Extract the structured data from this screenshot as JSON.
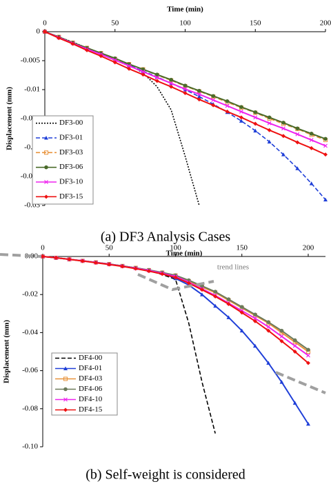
{
  "chart_data": [
    {
      "type": "line",
      "title": "Time (min)",
      "y_label": "Displacement (mm)",
      "caption": "(a) DF3 Analysis Cases",
      "x": [
        0,
        10,
        20,
        30,
        40,
        50,
        60,
        70,
        80,
        90,
        100,
        110,
        120,
        130,
        140,
        150,
        160,
        170,
        180,
        190,
        200
      ],
      "xlim": [
        0,
        200
      ],
      "xticks": [
        0,
        50,
        100,
        150,
        200
      ],
      "ylim": [
        0,
        -0.03
      ],
      "yticks": [
        0,
        -0.005,
        -0.01,
        -0.015,
        -0.02,
        -0.025,
        -0.03
      ],
      "legend": "bottom-left",
      "series": [
        {
          "name": "DF3-00",
          "color": "#000000",
          "dash": "dotted",
          "marker": "none",
          "values": [
            0,
            -0.0009,
            -0.0018,
            -0.0028,
            -0.0037,
            -0.0046,
            -0.0057,
            -0.0071,
            -0.0095,
            -0.0135,
            -0.0215,
            -0.03,
            null,
            null,
            null,
            null,
            null,
            null,
            null,
            null,
            null
          ]
        },
        {
          "name": "DF3-01",
          "color": "#1f3fd8",
          "dash": "dashed",
          "marker": "triangle",
          "values": [
            0,
            -0.0009,
            -0.0019,
            -0.0028,
            -0.0038,
            -0.0048,
            -0.0058,
            -0.0068,
            -0.0078,
            -0.0089,
            -0.01,
            -0.0112,
            -0.0125,
            -0.0139,
            -0.0154,
            -0.0171,
            -0.019,
            -0.0212,
            -0.0236,
            -0.0262,
            -0.029
          ]
        },
        {
          "name": "DF3-03",
          "color": "#e8923a",
          "dash": "dashed",
          "marker": "square",
          "values": [
            0,
            -0.0009,
            -0.0019,
            -0.0028,
            -0.0037,
            -0.0047,
            -0.0056,
            -0.0065,
            -0.0075,
            -0.0084,
            -0.0094,
            -0.0103,
            -0.0112,
            -0.0122,
            -0.0131,
            -0.014,
            -0.015,
            -0.0159,
            -0.0168,
            -0.0178,
            -0.0187
          ]
        },
        {
          "name": "DF3-06",
          "color": "#4a6b2a",
          "dash": "solid",
          "marker": "circle",
          "values": [
            0,
            -0.0009,
            -0.0019,
            -0.0028,
            -0.0037,
            -0.0046,
            -0.0056,
            -0.0065,
            -0.0074,
            -0.0083,
            -0.0093,
            -0.0102,
            -0.0111,
            -0.012,
            -0.013,
            -0.0139,
            -0.0148,
            -0.0157,
            -0.0167,
            -0.0176,
            -0.0185
          ]
        },
        {
          "name": "DF3-10",
          "color": "#ee22ee",
          "dash": "solid",
          "marker": "cross",
          "values": [
            0,
            -0.001,
            -0.002,
            -0.003,
            -0.0039,
            -0.0049,
            -0.0059,
            -0.0069,
            -0.0079,
            -0.0089,
            -0.0099,
            -0.0108,
            -0.0118,
            -0.0128,
            -0.0138,
            -0.0148,
            -0.0158,
            -0.0167,
            -0.0177,
            -0.0187,
            -0.0197
          ]
        },
        {
          "name": "DF3-15",
          "color": "#ee1111",
          "dash": "solid",
          "marker": "diamond",
          "values": [
            0,
            -0.0011,
            -0.0021,
            -0.0032,
            -0.0042,
            -0.0053,
            -0.0064,
            -0.0074,
            -0.0085,
            -0.0095,
            -0.0106,
            -0.0117,
            -0.0127,
            -0.0138,
            -0.0148,
            -0.0159,
            -0.017,
            -0.018,
            -0.0191,
            -0.0201,
            -0.0212
          ]
        }
      ]
    },
    {
      "type": "line",
      "title": "Time (min)",
      "y_label": "Displacement (mm)",
      "caption": "(b) Self-weight is considered",
      "annotation": "trend lines",
      "x": [
        0,
        10,
        20,
        30,
        40,
        50,
        60,
        70,
        80,
        90,
        100,
        110,
        120,
        130,
        140,
        150,
        160,
        170,
        180,
        190,
        200
      ],
      "xlim": [
        0,
        213
      ],
      "xticks": [
        0,
        50,
        100,
        150,
        200
      ],
      "ylim": [
        0,
        -0.1
      ],
      "yticks": [
        {
          "value": 0,
          "label": "0.00"
        },
        {
          "value": -0.02,
          "label": "-0.02"
        },
        {
          "value": -0.04,
          "label": "-0.04"
        },
        {
          "value": -0.06,
          "label": "-0.06"
        },
        {
          "value": -0.08,
          "label": "-0.08"
        },
        {
          "value": -0.1,
          "label": "-0.10"
        }
      ],
      "legend": "bottom-left",
      "series": [
        {
          "name": "DF4-00",
          "color": "#000000",
          "dash": "dashed",
          "marker": "none",
          "values": [
            0,
            -0.0007,
            -0.0015,
            -0.0023,
            -0.0031,
            -0.004,
            -0.005,
            -0.006,
            -0.0075,
            -0.0095,
            -0.012,
            -0.035,
            -0.066,
            -0.093,
            null,
            null,
            null,
            null,
            null,
            null,
            null
          ]
        },
        {
          "name": "DF4-01",
          "color": "#1f3fd8",
          "dash": "solid",
          "marker": "triangle",
          "values": [
            0,
            -0.0007,
            -0.0015,
            -0.0023,
            -0.0031,
            -0.004,
            -0.005,
            -0.006,
            -0.0072,
            -0.0088,
            -0.0115,
            -0.015,
            -0.02,
            -0.026,
            -0.032,
            -0.039,
            -0.047,
            -0.056,
            -0.066,
            -0.077,
            -0.088
          ]
        },
        {
          "name": "DF4-03",
          "color": "#e8923a",
          "dash": "solid",
          "marker": "square",
          "values": [
            0,
            -0.0007,
            -0.0015,
            -0.0023,
            -0.0031,
            -0.004,
            -0.005,
            -0.006,
            -0.0072,
            -0.0085,
            -0.01,
            -0.013,
            -0.016,
            -0.019,
            -0.023,
            -0.027,
            -0.031,
            -0.035,
            -0.04,
            -0.045,
            -0.05
          ]
        },
        {
          "name": "DF4-06",
          "color": "#6b7a5a",
          "dash": "solid",
          "marker": "circle",
          "values": [
            0,
            -0.0007,
            -0.0015,
            -0.0023,
            -0.0031,
            -0.004,
            -0.005,
            -0.006,
            -0.0071,
            -0.0084,
            -0.0099,
            -0.0125,
            -0.0155,
            -0.0185,
            -0.0225,
            -0.0265,
            -0.0305,
            -0.0345,
            -0.039,
            -0.044,
            -0.049
          ]
        },
        {
          "name": "DF4-10",
          "color": "#ee22ee",
          "dash": "solid",
          "marker": "cross",
          "values": [
            0,
            -0.0007,
            -0.0015,
            -0.0023,
            -0.0032,
            -0.0041,
            -0.0051,
            -0.0062,
            -0.0074,
            -0.0088,
            -0.0105,
            -0.0135,
            -0.017,
            -0.0205,
            -0.0245,
            -0.0285,
            -0.0325,
            -0.037,
            -0.042,
            -0.047,
            -0.052
          ]
        },
        {
          "name": "DF4-15",
          "color": "#ee1111",
          "dash": "solid",
          "marker": "diamond",
          "values": [
            0,
            -0.0007,
            -0.0015,
            -0.0024,
            -0.0033,
            -0.0042,
            -0.0052,
            -0.0064,
            -0.0077,
            -0.0092,
            -0.011,
            -0.014,
            -0.0175,
            -0.021,
            -0.025,
            -0.0295,
            -0.034,
            -0.039,
            -0.0445,
            -0.05,
            -0.056
          ]
        }
      ]
    }
  ]
}
